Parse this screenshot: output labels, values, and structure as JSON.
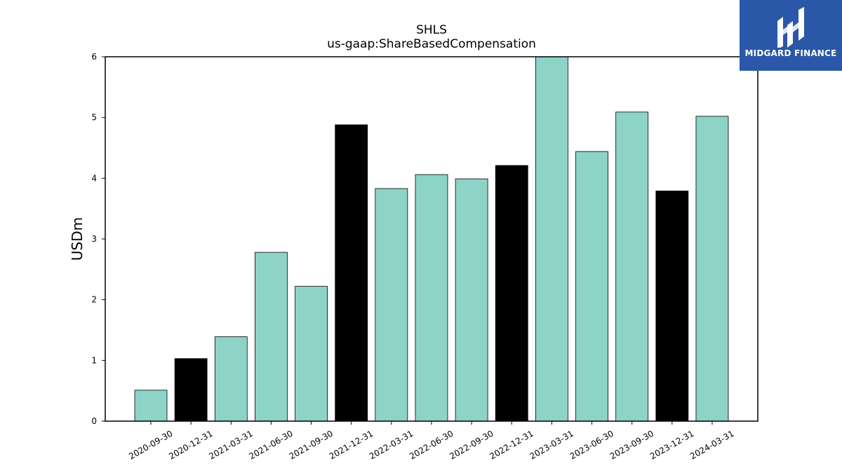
{
  "chart_data": {
    "type": "bar",
    "title": "SHLS",
    "subtitle": "us-gaap:ShareBasedCompensation",
    "xlabel": "",
    "ylabel": "USDm",
    "ylim": [
      0,
      6
    ],
    "yticks": [
      "0",
      "1",
      "2",
      "3",
      "4",
      "5",
      "6"
    ],
    "categories": [
      "2020-09-30",
      "2020-12-31",
      "2021-03-31",
      "2021-06-30",
      "2021-09-30",
      "2021-12-31",
      "2022-03-31",
      "2022-06-30",
      "2022-09-30",
      "2022-12-31",
      "2023-03-31",
      "2023-06-30",
      "2023-09-30",
      "2023-12-31",
      "2024-03-31"
    ],
    "values": [
      0.51,
      1.03,
      1.39,
      2.78,
      2.22,
      4.88,
      3.83,
      4.06,
      3.99,
      4.21,
      6.0,
      4.44,
      5.09,
      3.79,
      5.02
    ],
    "bar_colors": [
      "#8dd3c7",
      "#000000",
      "#8dd3c7",
      "#8dd3c7",
      "#8dd3c7",
      "#000000",
      "#8dd3c7",
      "#8dd3c7",
      "#8dd3c7",
      "#000000",
      "#8dd3c7",
      "#8dd3c7",
      "#8dd3c7",
      "#000000",
      "#8dd3c7"
    ],
    "grid": false,
    "legend": "none"
  },
  "logo": {
    "text": "MIDGARD FINANCE",
    "background": "#2b57a8"
  }
}
